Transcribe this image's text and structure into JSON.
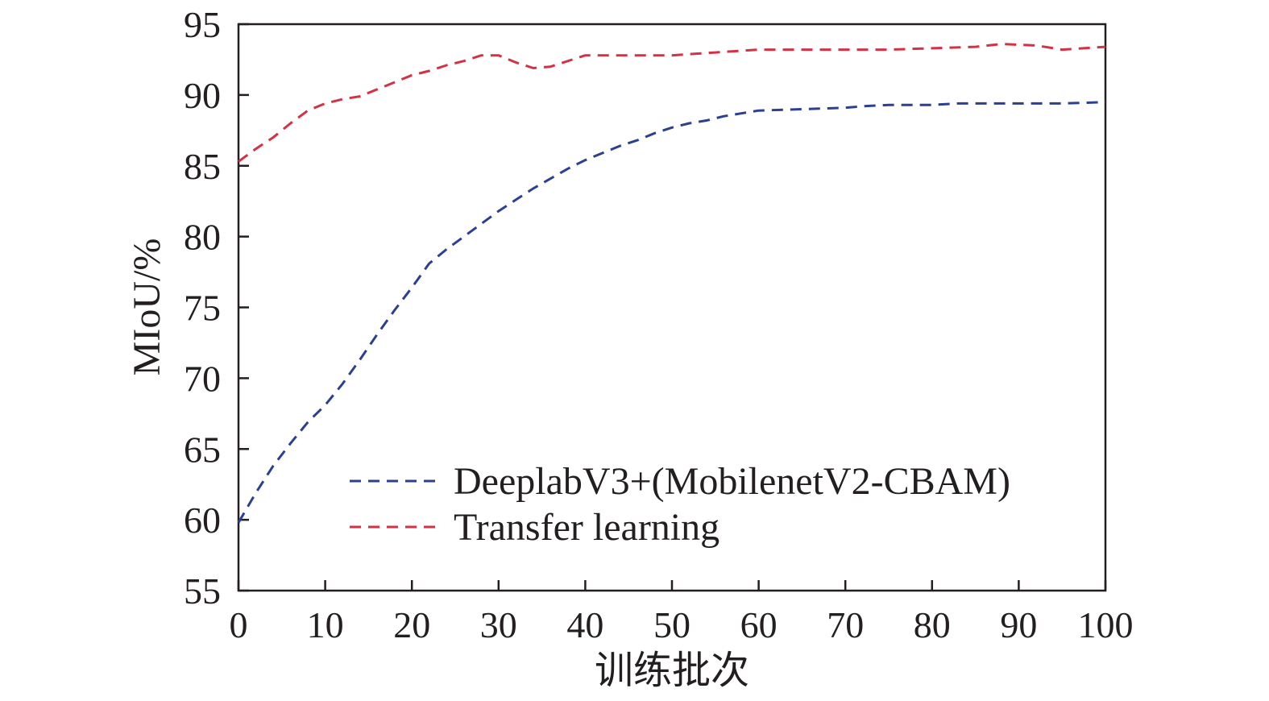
{
  "chart_data": {
    "type": "line",
    "title": "",
    "xlabel": "训练批次",
    "ylabel": "MIoU/%",
    "xlim": [
      0,
      100
    ],
    "ylim": [
      55,
      95
    ],
    "xticks": [
      0,
      10,
      20,
      30,
      40,
      50,
      60,
      70,
      80,
      90,
      100
    ],
    "yticks": [
      55,
      60,
      65,
      70,
      75,
      80,
      85,
      90,
      95
    ],
    "grid": false,
    "legend_position": "bottom-center",
    "series": [
      {
        "name": "DeeplabV3+(MobilenetV2-CBAM)",
        "color": "#2b3f93",
        "line_style": "dashed",
        "x": [
          0,
          2,
          4,
          6,
          8,
          10,
          12,
          14,
          16,
          18,
          20,
          22,
          24,
          26,
          28,
          30,
          32,
          34,
          36,
          38,
          40,
          42,
          44,
          46,
          48,
          50,
          52,
          54,
          56,
          58,
          60,
          65,
          70,
          72,
          75,
          80,
          83,
          85,
          90,
          95,
          100
        ],
        "y": [
          59.8,
          61.9,
          63.8,
          65.4,
          66.9,
          68.1,
          69.6,
          71.3,
          73.1,
          74.8,
          76.4,
          78.1,
          79.1,
          80.0,
          80.9,
          81.8,
          82.6,
          83.4,
          84.1,
          84.8,
          85.4,
          85.9,
          86.4,
          86.8,
          87.3,
          87.7,
          88.0,
          88.2,
          88.5,
          88.7,
          88.9,
          89.0,
          89.1,
          89.2,
          89.3,
          89.3,
          89.4,
          89.4,
          89.4,
          89.4,
          89.5
        ]
      },
      {
        "name": "Transfer learning",
        "color": "#d43244",
        "line_style": "dashed",
        "x": [
          0,
          2,
          4,
          6,
          8,
          10,
          12,
          14,
          16,
          18,
          20,
          22,
          24,
          26,
          28,
          30,
          32,
          34,
          36,
          38,
          40,
          45,
          50,
          55,
          60,
          65,
          70,
          75,
          80,
          85,
          88,
          92,
          95,
          100
        ],
        "y": [
          85.3,
          86.2,
          87.0,
          88.0,
          88.9,
          89.4,
          89.7,
          89.9,
          90.4,
          90.9,
          91.4,
          91.7,
          92.1,
          92.4,
          92.8,
          92.8,
          92.3,
          91.9,
          92.0,
          92.4,
          92.8,
          92.8,
          92.8,
          93.0,
          93.2,
          93.2,
          93.2,
          93.2,
          93.3,
          93.4,
          93.6,
          93.5,
          93.2,
          93.4
        ]
      }
    ]
  }
}
